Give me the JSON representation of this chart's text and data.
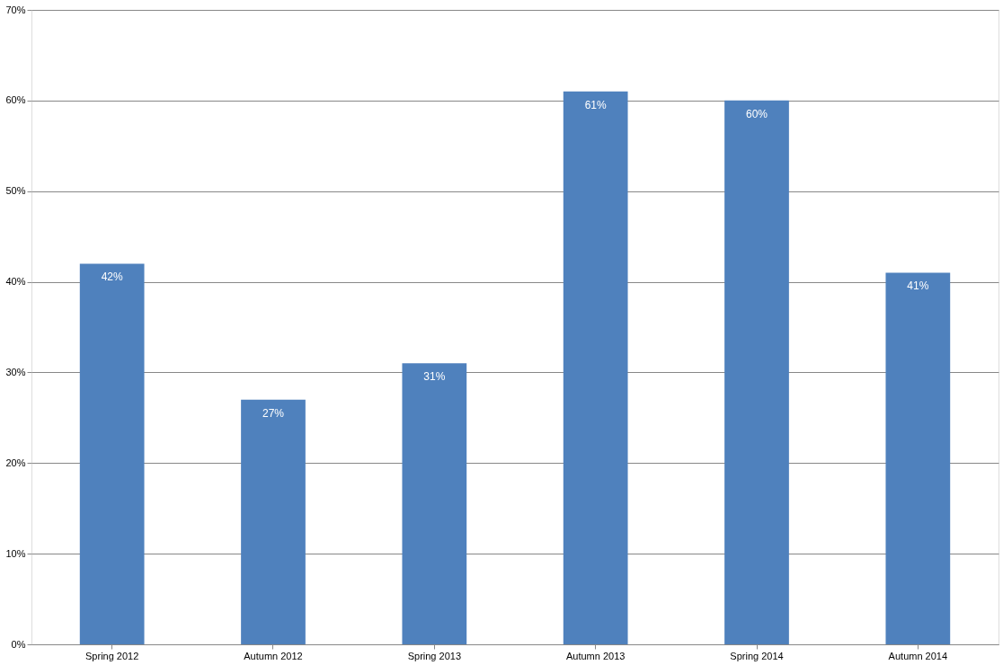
{
  "chart_data": {
    "type": "bar",
    "categories": [
      "Spring 2012",
      "Autumn 2012",
      "Spring 2013",
      "Autumn 2013",
      "Spring 2014",
      "Autumn 2014"
    ],
    "values": [
      42,
      27,
      31,
      61,
      60,
      41
    ],
    "value_labels": [
      "42%",
      "27%",
      "31%",
      "61%",
      "60%",
      "41%"
    ],
    "color": "#4f81bd",
    "ylim": [
      0,
      70
    ],
    "yticks": [
      {
        "value": 0,
        "label": "0%"
      },
      {
        "value": 10,
        "label": "10%"
      },
      {
        "value": 20,
        "label": "20%"
      },
      {
        "value": 30,
        "label": "30%"
      },
      {
        "value": 40,
        "label": "40%"
      },
      {
        "value": 50,
        "label": "50%"
      },
      {
        "value": 60,
        "label": "60%"
      },
      {
        "value": 70,
        "label": "70%"
      }
    ],
    "grid": "y"
  }
}
